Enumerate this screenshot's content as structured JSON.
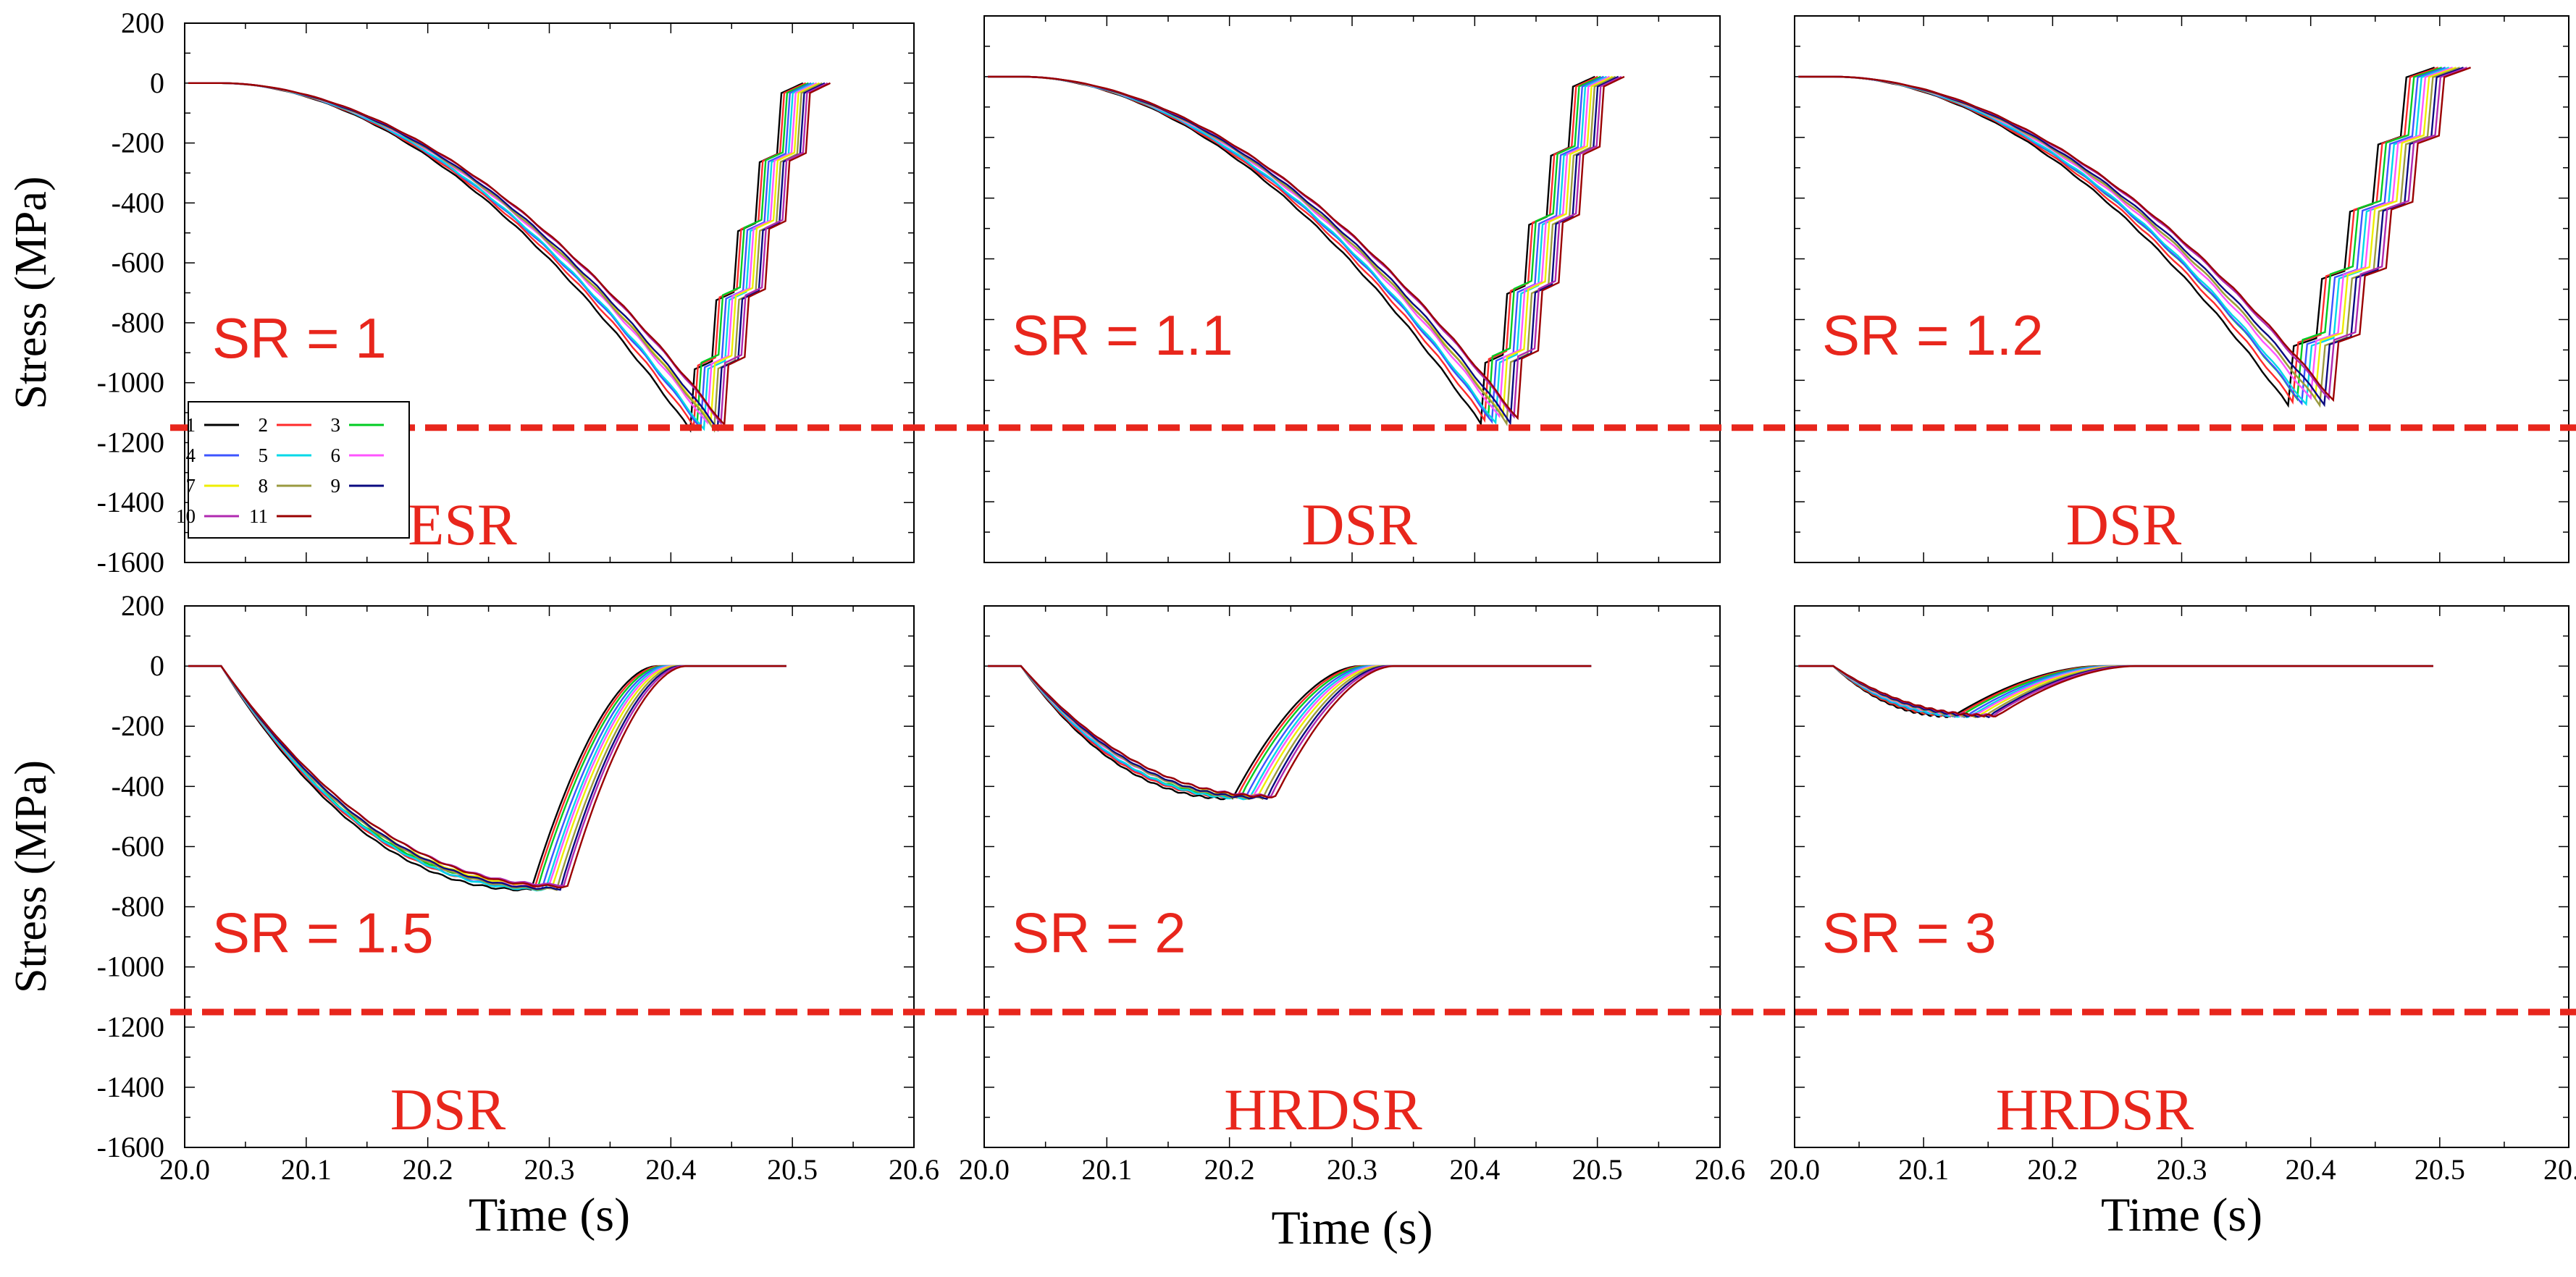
{
  "chart_data": [
    {
      "type": "line",
      "panel": "top-left",
      "sr_label": "SR = 1",
      "class_label": "ESR",
      "ylabel": "Stress (MPa)",
      "xlabel": "",
      "min_time": 20.43,
      "min_stress": -1145,
      "spread": 0.028,
      "end_time": 20.52,
      "end_stress": 0,
      "plateau": false,
      "steps": true,
      "show_legend": true
    },
    {
      "type": "line",
      "panel": "top-middle",
      "sr_label": "SR = 1.1",
      "class_label": "DSR",
      "ylabel": "",
      "xlabel": "",
      "min_time": 20.42,
      "min_stress": -1130,
      "spread": 0.03,
      "end_time": 20.51,
      "end_stress": 0,
      "plateau": false,
      "steps": true,
      "show_legend": false
    },
    {
      "type": "line",
      "panel": "top-right",
      "sr_label": "SR = 1.2",
      "class_label": "DSR",
      "ylabel": "",
      "xlabel": "",
      "min_time": 20.4,
      "min_stress": -1070,
      "spread": 0.035,
      "end_time": 20.51,
      "end_stress": 30,
      "plateau": false,
      "steps": true,
      "show_legend": false
    },
    {
      "type": "line",
      "panel": "bottom-left",
      "sr_label": "SR = 1.5",
      "class_label": "DSR",
      "ylabel": "Stress (MPa)",
      "xlabel": "Time (s)",
      "min_time": 20.3,
      "min_stress": -735,
      "spread": 0.03,
      "end_time": 20.4,
      "end_stress": 0,
      "plateau": true,
      "steps": false,
      "show_legend": false
    },
    {
      "type": "line",
      "panel": "bottom-middle",
      "sr_label": "SR = 2",
      "class_label": "HRDSR",
      "ylabel": "",
      "xlabel": "Time (s)",
      "min_time": 20.22,
      "min_stress": -435,
      "spread": 0.035,
      "end_time": 20.32,
      "end_stress": 0,
      "plateau": true,
      "steps": false,
      "show_legend": false
    },
    {
      "type": "line",
      "panel": "bottom-right",
      "sr_label": "SR = 3",
      "class_label": "HRDSR",
      "ylabel": "",
      "xlabel": "Time (s)",
      "min_time": 20.14,
      "min_stress": -165,
      "spread": 0.035,
      "end_time": 20.25,
      "end_stress": 0,
      "plateau": true,
      "steps": false,
      "show_legend": false
    }
  ],
  "shared": {
    "x_range": [
      20.0,
      20.6
    ],
    "y_range": [
      -1600,
      200
    ],
    "x_ticks": [
      "20.0",
      "20.1",
      "20.2",
      "20.3",
      "20.4",
      "20.5",
      "20.6"
    ],
    "y_ticks": [
      "200",
      "0",
      "-200",
      "-400",
      "-600",
      "-800",
      "-1000",
      "-1200",
      "-1400",
      "-1600"
    ],
    "threshold_stress": -1150,
    "threshold_color": "#e8261c",
    "annotation_color": "#e8261c",
    "series_names": [
      "1",
      "2",
      "3",
      "4",
      "5",
      "6",
      "7",
      "8",
      "9",
      "10",
      "11"
    ],
    "series_colors": [
      "#000000",
      "#ff2a2a",
      "#00cc22",
      "#3d55ff",
      "#00d8e8",
      "#ff55ff",
      "#eeee00",
      "#9a9a40",
      "#0a0a80",
      "#b02ab0",
      "#9a0000"
    ]
  }
}
